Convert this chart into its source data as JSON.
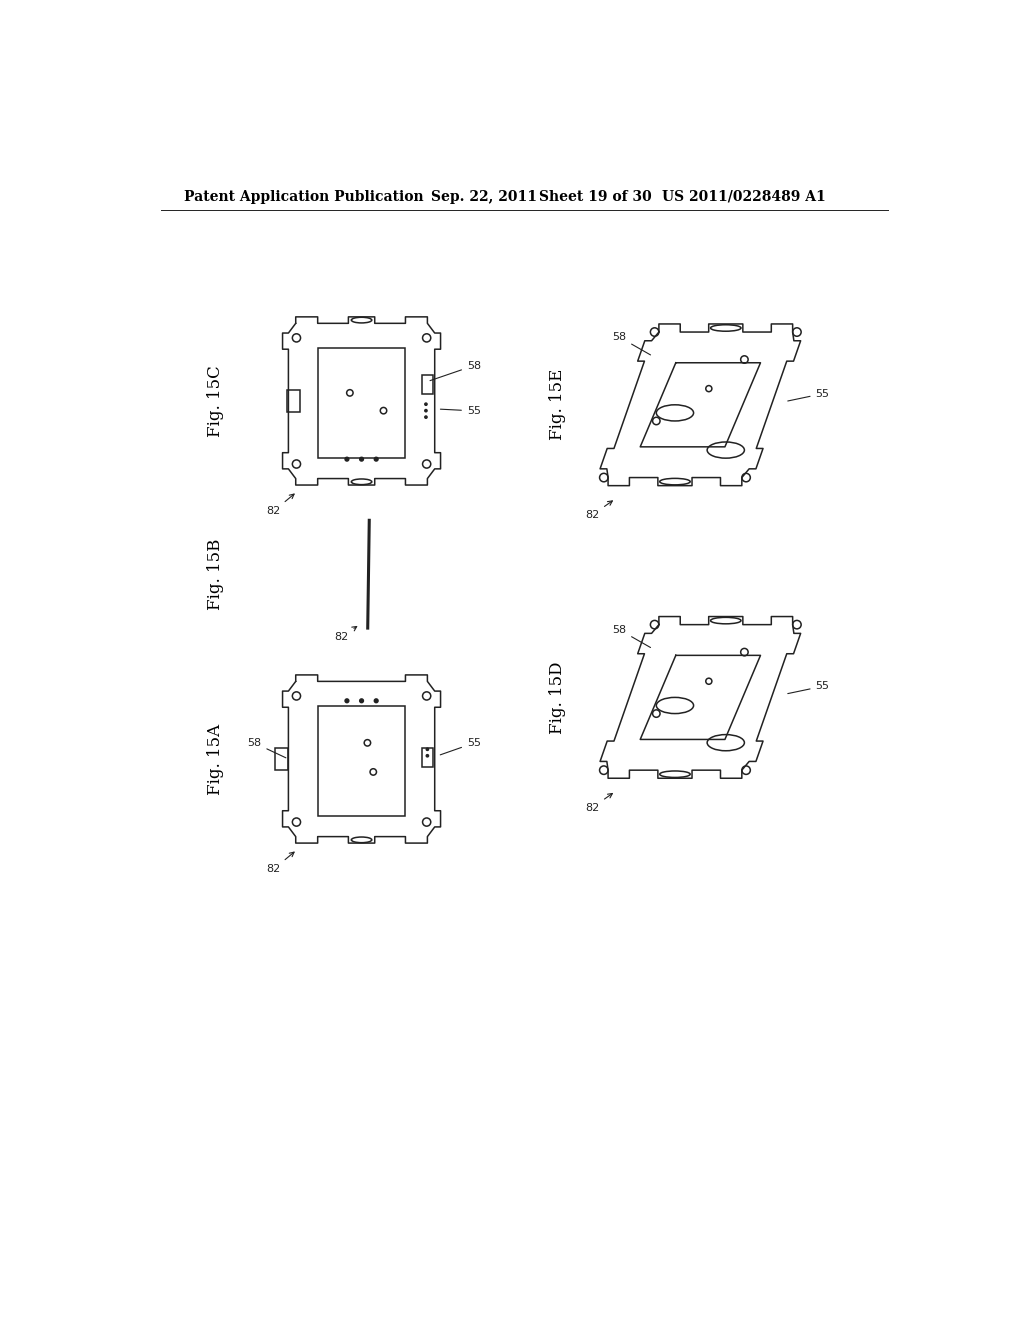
{
  "background_color": "#ffffff",
  "page_width": 10.24,
  "page_height": 13.2,
  "header_text": "Patent Application Publication",
  "header_date": "Sep. 22, 2011",
  "header_sheet": "Sheet 19 of 30",
  "header_patent": "US 2011/0228489 A1",
  "line_color": "#222222",
  "line_width": 1.1,
  "label_fontsize": 12
}
